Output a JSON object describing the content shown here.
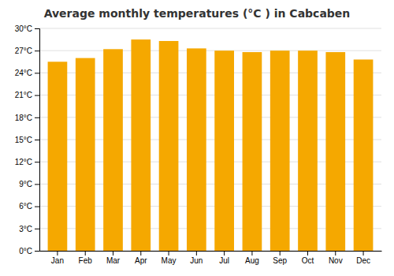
{
  "chart_data": {
    "type": "bar",
    "title": "Average monthly temperatures (°C ) in Cabcaben",
    "categories": [
      "Jan",
      "Feb",
      "Mar",
      "Apr",
      "May",
      "Jun",
      "Jul",
      "Aug",
      "Sep",
      "Oct",
      "Nov",
      "Dec"
    ],
    "values": [
      25.5,
      26.0,
      27.2,
      28.5,
      28.3,
      27.3,
      27.0,
      26.8,
      27.0,
      27.0,
      26.8,
      25.8
    ],
    "color": "#F5A800",
    "ylim": [
      0,
      30
    ],
    "yticks": [
      {
        "value": 0,
        "label": "0°C"
      },
      {
        "value": 3,
        "label": "3°C"
      },
      {
        "value": 6,
        "label": "6°C"
      },
      {
        "value": 9,
        "label": "9°C"
      },
      {
        "value": 12,
        "label": "12°C"
      },
      {
        "value": 15,
        "label": "15°C"
      },
      {
        "value": 18,
        "label": "18°C"
      },
      {
        "value": 21,
        "label": "21°C"
      },
      {
        "value": 24,
        "label": "24°C"
      },
      {
        "value": 27,
        "label": "27°C"
      },
      {
        "value": 30,
        "label": "30°C"
      }
    ],
    "grid": true
  }
}
